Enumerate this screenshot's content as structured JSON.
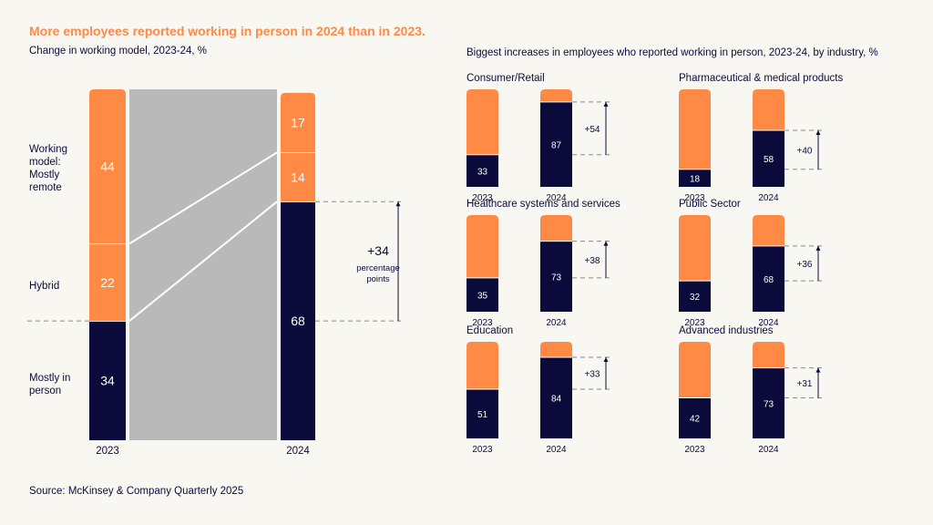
{
  "title": "More employees reported working in person in 2024 than in 2023.",
  "source": "Source: McKinsey & Company Quarterly 2025",
  "colors": {
    "remote": "#ff8a45",
    "in_person": "#0b0b3b",
    "flow": "#b9b9b9",
    "background": "#f9f7f2"
  },
  "chart_data": [
    {
      "type": "bar",
      "stacked": true,
      "title": "Change in working model, 2023-24, %",
      "categories": [
        "2023",
        "2024"
      ],
      "series": [
        {
          "name": "Mostly in person",
          "values": [
            34,
            68
          ]
        },
        {
          "name": "Hybrid",
          "values": [
            22,
            14
          ]
        },
        {
          "name": "Working model: Mostly remote",
          "values": [
            44,
            17
          ]
        }
      ],
      "annotation": {
        "value": "+34",
        "text": "percentage points"
      },
      "ylim": [
        0,
        100
      ]
    },
    {
      "type": "bar",
      "stacked": true,
      "title": "Biggest increases in employees who reported working in person, 2023-24, by industry, %",
      "categories": [
        "2023",
        "2024"
      ],
      "ylim": [
        0,
        100
      ],
      "panels": [
        {
          "name": "Consumer/Retail",
          "values": [
            33,
            87
          ],
          "change": "+54"
        },
        {
          "name": "Pharmaceutical & medical products",
          "values": [
            18,
            58
          ],
          "change": "+40"
        },
        {
          "name": "Healthcare systems and services",
          "values": [
            35,
            73
          ],
          "change": "+38"
        },
        {
          "name": "Public Sector",
          "values": [
            32,
            68
          ],
          "change": "+36"
        },
        {
          "name": "Education",
          "values": [
            51,
            84
          ],
          "change": "+33"
        },
        {
          "name": "Advanced industries",
          "values": [
            42,
            73
          ],
          "change": "+31"
        }
      ]
    }
  ]
}
